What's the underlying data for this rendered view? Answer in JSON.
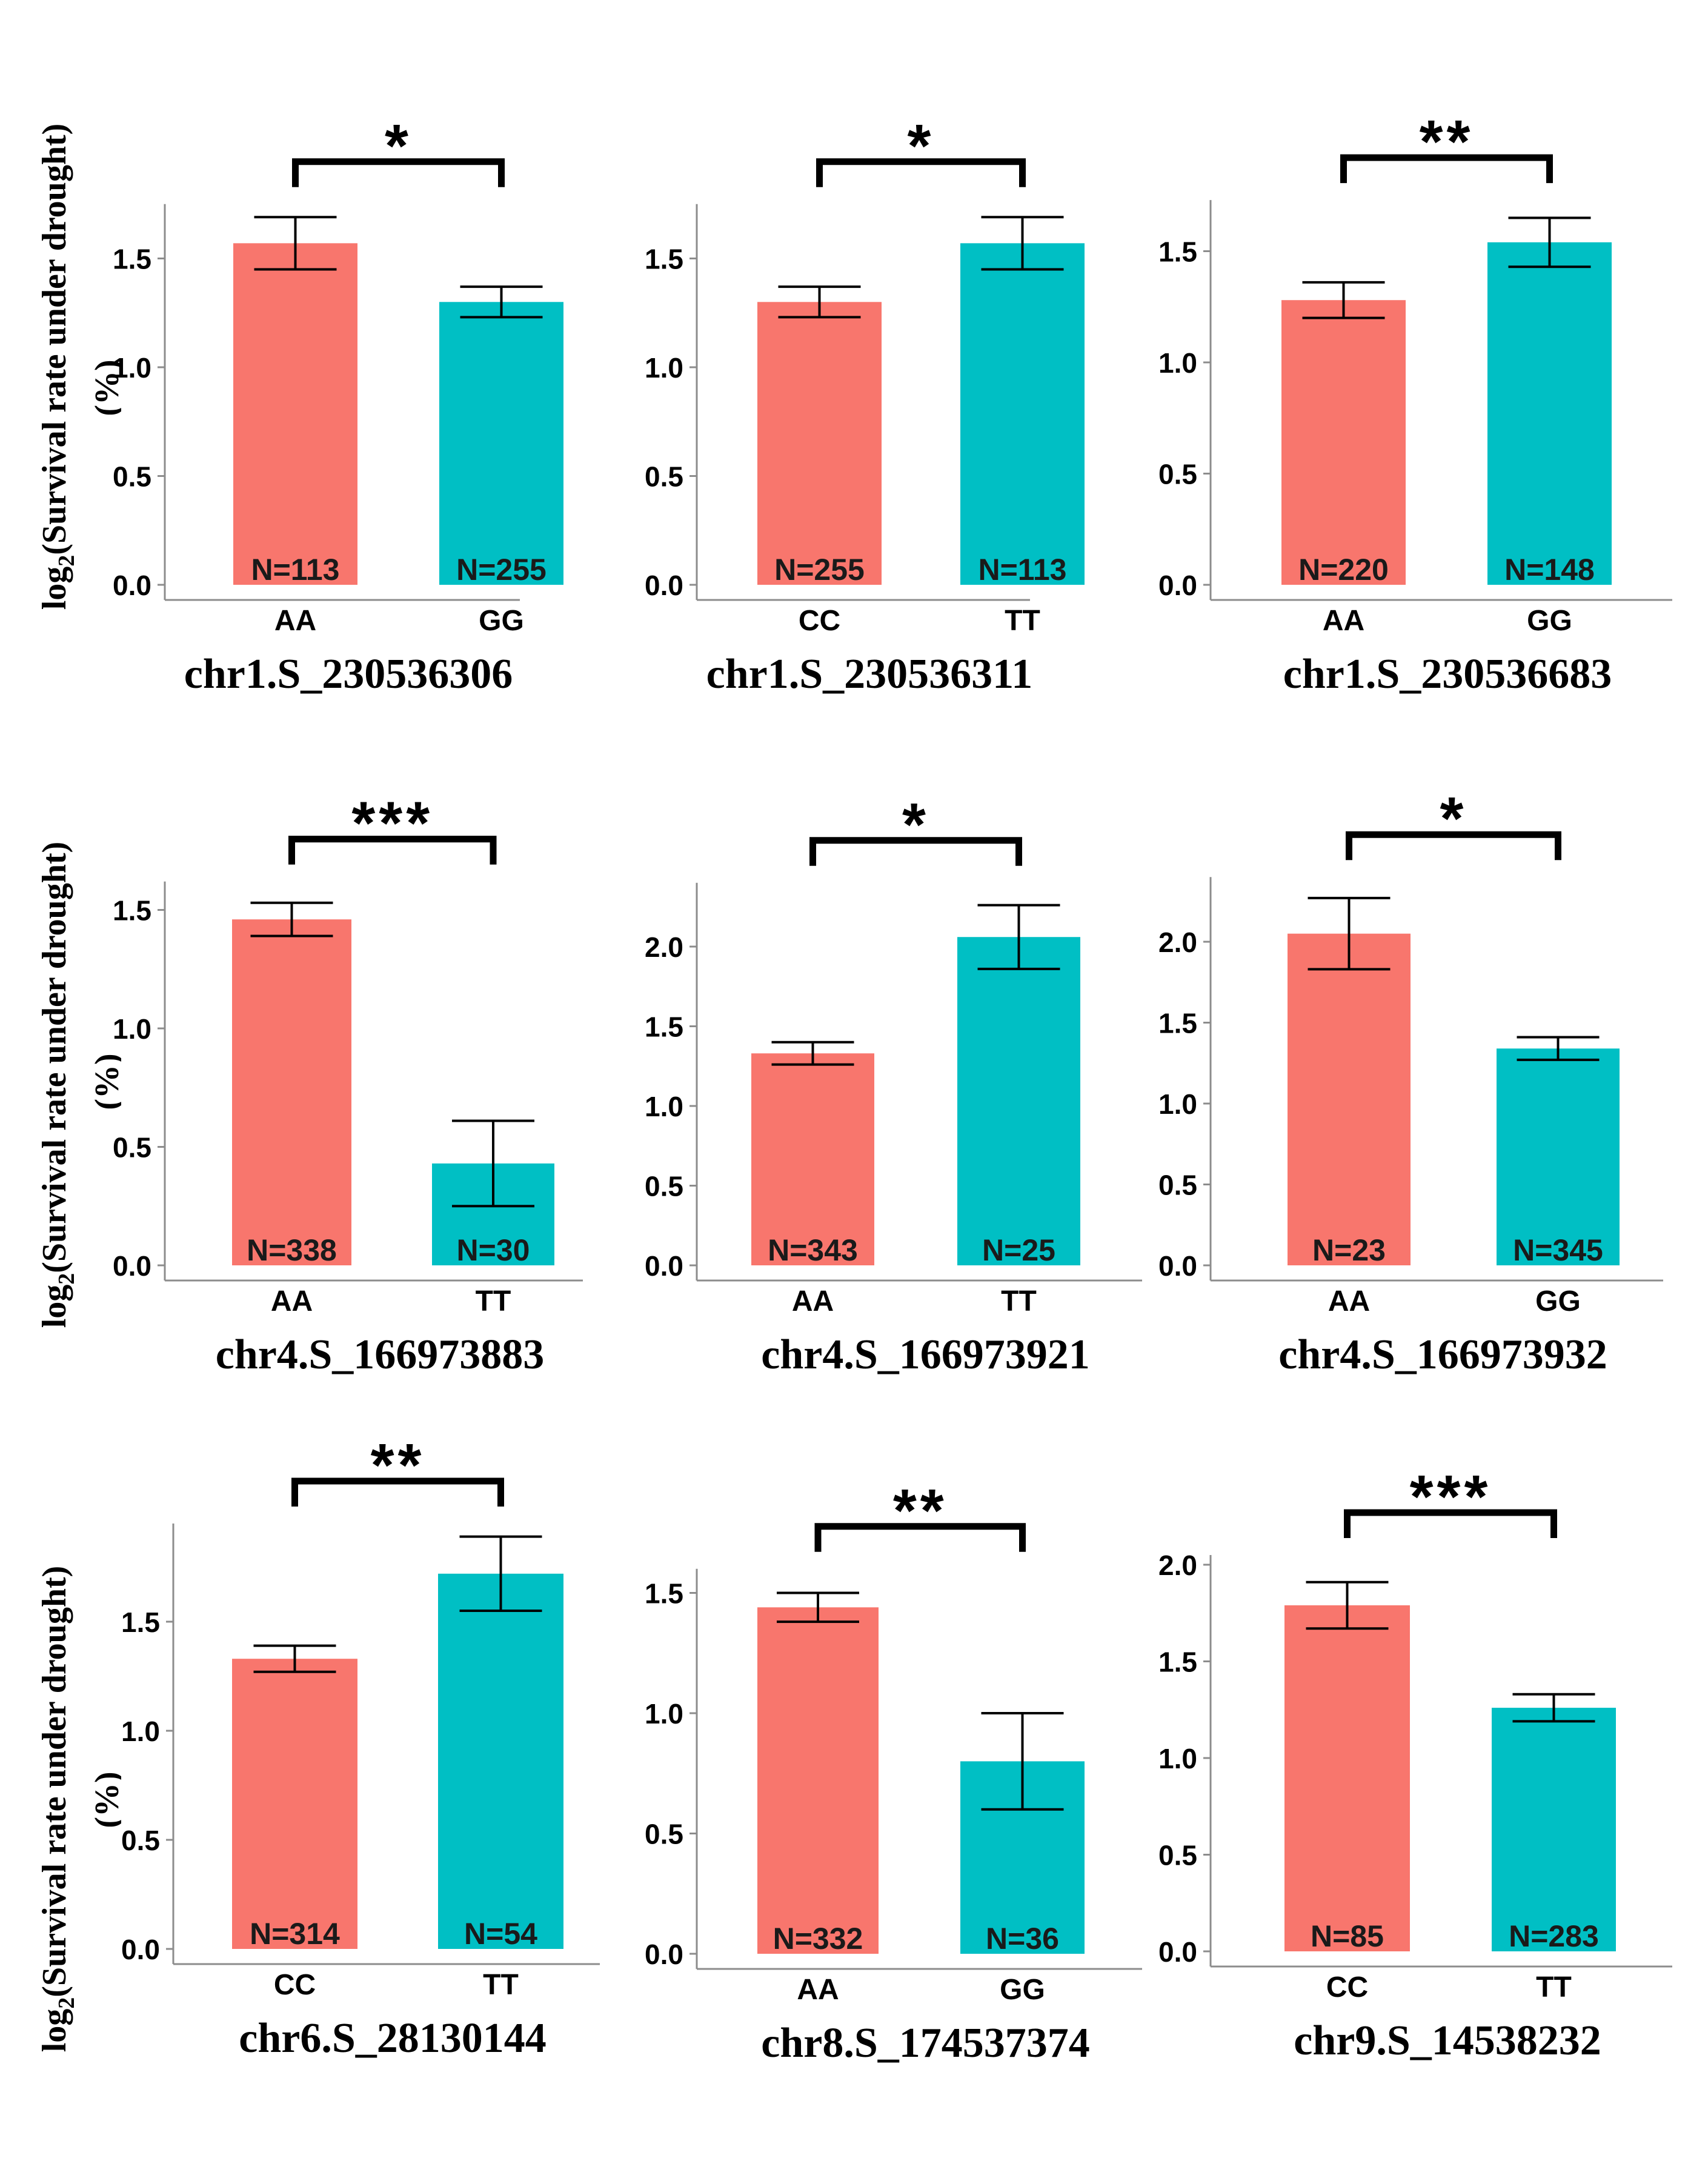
{
  "figure": {
    "ylabel_prefix": "log",
    "ylabel_subscript": "2",
    "ylabel_main": "(Survival rate under drought)",
    "ylabel_unit": "(%)",
    "colors": {
      "group1": "#F8766D",
      "group2": "#00BFC4",
      "text": "#000000",
      "axis": "#8c8c8c"
    }
  },
  "chart_data": [
    {
      "type": "bar",
      "title": "chr1.S_230536306",
      "categories": [
        "AA",
        "GG"
      ],
      "values": [
        1.57,
        1.3
      ],
      "error_bars": [
        [
          1.45,
          1.69
        ],
        [
          1.23,
          1.37
        ]
      ],
      "n_labels": [
        "N=113",
        "N=255"
      ],
      "significance": "*",
      "yticks": [
        0.0,
        0.5,
        1.0,
        1.5
      ],
      "tick_labels": [
        "0.0",
        "0.5",
        "1.0",
        "1.5"
      ],
      "ylim": [
        0,
        1.75
      ]
    },
    {
      "type": "bar",
      "title": "chr1.S_230536311",
      "categories": [
        "CC",
        "TT"
      ],
      "values": [
        1.3,
        1.57
      ],
      "error_bars": [
        [
          1.23,
          1.37
        ],
        [
          1.45,
          1.69
        ]
      ],
      "n_labels": [
        "N=255",
        "N=113"
      ],
      "significance": "*",
      "yticks": [
        0.0,
        0.5,
        1.0,
        1.5
      ],
      "tick_labels": [
        "0.0",
        "0.5",
        "1.0",
        "1.5"
      ],
      "ylim": [
        0,
        1.75
      ]
    },
    {
      "type": "bar",
      "title": "chr1.S_230536683",
      "categories": [
        "AA",
        "GG"
      ],
      "values": [
        1.28,
        1.54
      ],
      "error_bars": [
        [
          1.2,
          1.36
        ],
        [
          1.43,
          1.65
        ]
      ],
      "n_labels": [
        "N=220",
        "N=148"
      ],
      "significance": "**",
      "yticks": [
        0.0,
        0.5,
        1.0,
        1.5
      ],
      "tick_labels": [
        "0.0",
        "0.5",
        "1.0",
        "1.5"
      ],
      "ylim": [
        0,
        1.73
      ]
    },
    {
      "type": "bar",
      "title": "chr4.S_166973883",
      "categories": [
        "AA",
        "TT"
      ],
      "values": [
        1.46,
        0.43
      ],
      "error_bars": [
        [
          1.39,
          1.53
        ],
        [
          0.25,
          0.61
        ]
      ],
      "n_labels": [
        "N=338",
        "N=30"
      ],
      "significance": "***",
      "yticks": [
        0.0,
        0.5,
        1.0,
        1.5
      ],
      "tick_labels": [
        "0.0",
        "0.5",
        "1.0",
        "1.5"
      ],
      "ylim": [
        0,
        1.62
      ]
    },
    {
      "type": "bar",
      "title": "chr4.S_166973921",
      "categories": [
        "AA",
        "TT"
      ],
      "values": [
        1.33,
        2.06
      ],
      "error_bars": [
        [
          1.26,
          1.4
        ],
        [
          1.86,
          2.26
        ]
      ],
      "n_labels": [
        "N=343",
        "N=25"
      ],
      "significance": "*",
      "yticks": [
        0.0,
        0.5,
        1.0,
        1.5,
        2.0
      ],
      "tick_labels": [
        "0.0",
        "0.5",
        "1.0",
        "1.5",
        "2.0"
      ],
      "ylim": [
        0,
        2.4
      ]
    },
    {
      "type": "bar",
      "title": "chr4.S_166973932",
      "categories": [
        "AA",
        "GG"
      ],
      "values": [
        2.05,
        1.34
      ],
      "error_bars": [
        [
          1.83,
          2.27
        ],
        [
          1.27,
          1.41
        ]
      ],
      "n_labels": [
        "N=23",
        "N=345"
      ],
      "significance": "*",
      "yticks": [
        0.0,
        0.5,
        1.0,
        1.5,
        2.0
      ],
      "tick_labels": [
        "0.0",
        "0.5",
        "1.0",
        "1.5",
        "2.0"
      ],
      "ylim": [
        0,
        2.4
      ]
    },
    {
      "type": "bar",
      "title": "chr6.S_28130144",
      "categories": [
        "CC",
        "TT"
      ],
      "values": [
        1.33,
        1.72
      ],
      "error_bars": [
        [
          1.27,
          1.39
        ],
        [
          1.55,
          1.89
        ]
      ],
      "n_labels": [
        "N=314",
        "N=54"
      ],
      "significance": "**",
      "yticks": [
        0.0,
        0.5,
        1.0,
        1.5
      ],
      "tick_labels": [
        "0.0",
        "0.5",
        "1.0",
        "1.5"
      ],
      "ylim": [
        0,
        1.95
      ]
    },
    {
      "type": "bar",
      "title": "chr8.S_174537374",
      "categories": [
        "AA",
        "GG"
      ],
      "values": [
        1.44,
        0.8
      ],
      "error_bars": [
        [
          1.38,
          1.5
        ],
        [
          0.6,
          1.0
        ]
      ],
      "n_labels": [
        "N=332",
        "N=36"
      ],
      "significance": "**",
      "yticks": [
        0.0,
        0.5,
        1.0,
        1.5
      ],
      "tick_labels": [
        "0.0",
        "0.5",
        "1.0",
        "1.5"
      ],
      "ylim": [
        0,
        1.6
      ]
    },
    {
      "type": "bar",
      "title": "chr9.S_14538232",
      "categories": [
        "CC",
        "TT"
      ],
      "values": [
        1.79,
        1.26
      ],
      "error_bars": [
        [
          1.67,
          1.91
        ],
        [
          1.19,
          1.33
        ]
      ],
      "n_labels": [
        "N=85",
        "N=283"
      ],
      "significance": "***",
      "yticks": [
        0.0,
        0.5,
        1.0,
        1.5,
        2.0
      ],
      "tick_labels": [
        "0.0",
        "0.5",
        "1.0",
        "1.5",
        "2.0"
      ],
      "ylim": [
        0,
        2.05
      ]
    }
  ]
}
